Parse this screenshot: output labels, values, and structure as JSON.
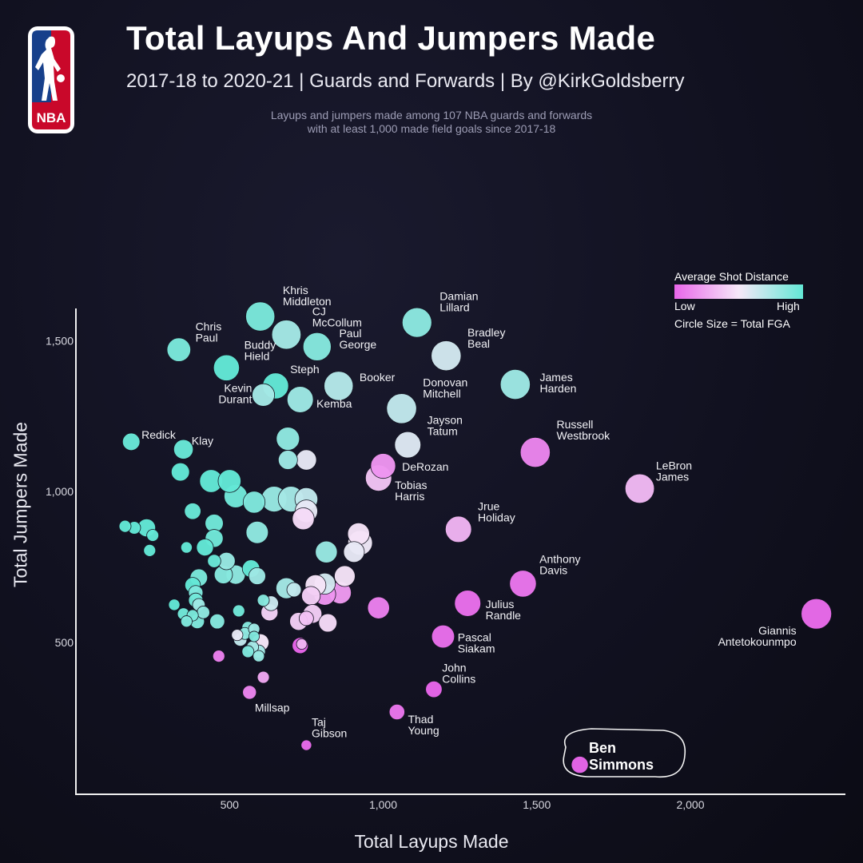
{
  "title": "Total Layups And Jumpers Made",
  "subtitle": "2017-18 to 2020-21 | Guards and Forwards | By @KirkGoldsberry",
  "description": [
    "Layups and jumpers made among 107 NBA guards and forwards",
    "with at least 1,000 made field goals since 2017-18"
  ],
  "logo_text": "NBA",
  "legend": {
    "title": "Average Shot Distance",
    "low": "Low",
    "high": "High",
    "size_note": "Circle Size = Total FGA"
  },
  "colors": {
    "low": "#e866ea",
    "mid": "#f6e8f8",
    "high": "#63e8d6",
    "axis": "#f0f0f0",
    "bg": "#111120"
  },
  "chart_data": {
    "type": "scatter",
    "xlabel": "Total Layups Made",
    "ylabel": "Total Jumpers Made",
    "xlim": [
      0,
      2500
    ],
    "ylim": [
      0,
      1600
    ],
    "xticks": [
      {
        "value": 500,
        "label": "500"
      },
      {
        "value": 1000,
        "label": "1,000"
      },
      {
        "value": 1500,
        "label": "1,500"
      },
      {
        "value": 2000,
        "label": "2,000"
      }
    ],
    "yticks": [
      {
        "value": 500,
        "label": "500"
      },
      {
        "value": 1000,
        "label": "1,000"
      },
      {
        "value": 1500,
        "label": "1,500"
      }
    ],
    "grid": false,
    "color_meaning": "average shot distance (0 = low, 1 = high)",
    "size_meaning": "total FGA",
    "labeled_points": [
      {
        "name": [
          "Khris",
          "Middleton"
        ],
        "x": 600,
        "y": 1580,
        "fga": 5300,
        "dist": 0.92
      },
      {
        "name": [
          "CJ",
          "McCollum"
        ],
        "x": 685,
        "y": 1520,
        "fga": 5400,
        "dist": 0.78
      },
      {
        "name": [
          "Paul",
          "George"
        ],
        "x": 785,
        "y": 1480,
        "fga": 5000,
        "dist": 0.88
      },
      {
        "name": [
          "Chris",
          "Paul"
        ],
        "x": 335,
        "y": 1470,
        "fga": 3500,
        "dist": 0.92
      },
      {
        "name": [
          "Buddy",
          "Hield"
        ],
        "x": 490,
        "y": 1410,
        "fga": 4200,
        "dist": 1.0
      },
      {
        "name": [
          "Damian",
          "Lillard"
        ],
        "x": 1110,
        "y": 1560,
        "fga": 5500,
        "dist": 0.86
      },
      {
        "name": [
          "Bradley",
          "Beal"
        ],
        "x": 1205,
        "y": 1450,
        "fga": 5600,
        "dist": 0.62
      },
      {
        "name": [
          "Steph"
        ],
        "x": 650,
        "y": 1350,
        "fga": 4200,
        "dist": 1.0
      },
      {
        "name": [
          "Booker"
        ],
        "x": 855,
        "y": 1350,
        "fga": 5300,
        "dist": 0.72
      },
      {
        "name": [
          "Kevin",
          "Durant"
        ],
        "x": 610,
        "y": 1320,
        "fga": 3200,
        "dist": 0.78
      },
      {
        "name": [
          "Kemba"
        ],
        "x": 730,
        "y": 1305,
        "fga": 4300,
        "dist": 0.8
      },
      {
        "name": [
          "James",
          "Harden"
        ],
        "x": 1430,
        "y": 1355,
        "fga": 5600,
        "dist": 0.8
      },
      {
        "name": [
          "Donovan",
          "Mitchell"
        ],
        "x": 1060,
        "y": 1275,
        "fga": 5600,
        "dist": 0.68
      },
      {
        "name": [
          "Jayson",
          "Tatum"
        ],
        "x": 1080,
        "y": 1155,
        "fga": 4300,
        "dist": 0.58
      },
      {
        "name": [
          "Redick"
        ],
        "x": 180,
        "y": 1165,
        "fga": 1900,
        "dist": 0.98
      },
      {
        "name": [
          "Klay"
        ],
        "x": 350,
        "y": 1140,
        "fga": 2400,
        "dist": 0.98
      },
      {
        "name": [
          "Russell",
          "Westbrook"
        ],
        "x": 1495,
        "y": 1130,
        "fga": 5600,
        "dist": 0.12
      },
      {
        "name": [
          "DeRozan"
        ],
        "x": 1000,
        "y": 1085,
        "fga": 3900,
        "dist": 0.18
      },
      {
        "name": [
          "Tobias",
          "Harris"
        ],
        "x": 985,
        "y": 1045,
        "fga": 4300,
        "dist": 0.36
      },
      {
        "name": [
          "LeBron",
          "James"
        ],
        "x": 1835,
        "y": 1010,
        "fga": 5400,
        "dist": 0.32
      },
      {
        "name": [
          "Jrue",
          "Holiday"
        ],
        "x": 1245,
        "y": 875,
        "fga": 4300,
        "dist": 0.3
      },
      {
        "name": [
          "Anthony",
          "Davis"
        ],
        "x": 1455,
        "y": 695,
        "fga": 4500,
        "dist": 0.06
      },
      {
        "name": [
          "Julius",
          "Randle"
        ],
        "x": 1275,
        "y": 630,
        "fga": 4300,
        "dist": 0.04
      },
      {
        "name": [
          "Giannis",
          "Antetokounmpo"
        ],
        "x": 2410,
        "y": 595,
        "fga": 5800,
        "dist": 0.02
      },
      {
        "name": [
          "Pascal",
          "Siakam"
        ],
        "x": 1195,
        "y": 520,
        "fga": 3300,
        "dist": 0.04
      },
      {
        "name": [
          "John",
          "Collins"
        ],
        "x": 1165,
        "y": 345,
        "fga": 1700,
        "dist": 0.0
      },
      {
        "name": [
          "Millsap"
        ],
        "x": 565,
        "y": 335,
        "fga": 1200,
        "dist": 0.12
      },
      {
        "name": [
          "Thad",
          "Young"
        ],
        "x": 1045,
        "y": 270,
        "fga": 1500,
        "dist": 0.06
      },
      {
        "name": [
          "Taj",
          "Gibson"
        ],
        "x": 750,
        "y": 160,
        "fga": 700,
        "dist": 0.02
      },
      {
        "name": [
          "Ben",
          "Simmons"
        ],
        "x": 1640,
        "y": 95,
        "fga": 1800,
        "dist": 0.0,
        "highlight": true
      }
    ],
    "unlabeled_points": [
      {
        "x": 690,
        "y": 1175,
        "fga": 3400,
        "dist": 0.85
      },
      {
        "x": 690,
        "y": 1105,
        "fga": 2300,
        "dist": 0.8
      },
      {
        "x": 750,
        "y": 1105,
        "fga": 2600,
        "dist": 0.55
      },
      {
        "x": 340,
        "y": 1065,
        "fga": 2100,
        "dist": 1.0
      },
      {
        "x": 440,
        "y": 1035,
        "fga": 3300,
        "dist": 1.0
      },
      {
        "x": 500,
        "y": 1035,
        "fga": 3300,
        "dist": 1.0
      },
      {
        "x": 520,
        "y": 985,
        "fga": 3400,
        "dist": 0.95
      },
      {
        "x": 580,
        "y": 965,
        "fga": 3000,
        "dist": 0.9
      },
      {
        "x": 645,
        "y": 975,
        "fga": 4100,
        "dist": 0.82
      },
      {
        "x": 700,
        "y": 975,
        "fga": 4100,
        "dist": 0.78
      },
      {
        "x": 750,
        "y": 975,
        "fga": 3300,
        "dist": 0.68
      },
      {
        "x": 750,
        "y": 935,
        "fga": 3200,
        "dist": 0.55
      },
      {
        "x": 740,
        "y": 910,
        "fga": 3000,
        "dist": 0.45
      },
      {
        "x": 380,
        "y": 935,
        "fga": 1700,
        "dist": 0.98
      },
      {
        "x": 450,
        "y": 895,
        "fga": 2100,
        "dist": 0.95
      },
      {
        "x": 160,
        "y": 885,
        "fga": 900,
        "dist": 1.0
      },
      {
        "x": 190,
        "y": 880,
        "fga": 1000,
        "dist": 1.0
      },
      {
        "x": 230,
        "y": 880,
        "fga": 2000,
        "dist": 1.0
      },
      {
        "x": 250,
        "y": 855,
        "fga": 900,
        "dist": 1.0
      },
      {
        "x": 450,
        "y": 845,
        "fga": 2000,
        "dist": 0.95
      },
      {
        "x": 360,
        "y": 815,
        "fga": 800,
        "dist": 1.0
      },
      {
        "x": 420,
        "y": 815,
        "fga": 1800,
        "dist": 1.0
      },
      {
        "x": 240,
        "y": 805,
        "fga": 900,
        "dist": 1.0
      },
      {
        "x": 590,
        "y": 865,
        "fga": 3100,
        "dist": 0.85
      },
      {
        "x": 815,
        "y": 800,
        "fga": 3000,
        "dist": 0.82
      },
      {
        "x": 490,
        "y": 770,
        "fga": 1900,
        "dist": 0.82
      },
      {
        "x": 450,
        "y": 770,
        "fga": 1100,
        "dist": 0.98
      },
      {
        "x": 570,
        "y": 745,
        "fga": 1900,
        "dist": 1.0
      },
      {
        "x": 480,
        "y": 725,
        "fga": 2100,
        "dist": 0.88
      },
      {
        "x": 520,
        "y": 725,
        "fga": 2300,
        "dist": 0.85
      },
      {
        "x": 590,
        "y": 720,
        "fga": 1800,
        "dist": 0.8
      },
      {
        "x": 400,
        "y": 715,
        "fga": 1900,
        "dist": 0.92
      },
      {
        "x": 380,
        "y": 690,
        "fga": 1500,
        "dist": 1.0
      },
      {
        "x": 920,
        "y": 860,
        "fga": 3000,
        "dist": 0.48
      },
      {
        "x": 925,
        "y": 830,
        "fga": 3800,
        "dist": 0.52
      },
      {
        "x": 905,
        "y": 800,
        "fga": 2700,
        "dist": 0.55
      },
      {
        "x": 875,
        "y": 720,
        "fga": 2700,
        "dist": 0.48
      },
      {
        "x": 685,
        "y": 680,
        "fga": 2700,
        "dist": 0.78
      },
      {
        "x": 710,
        "y": 675,
        "fga": 1300,
        "dist": 0.68
      },
      {
        "x": 780,
        "y": 690,
        "fga": 2700,
        "dist": 0.48
      },
      {
        "x": 810,
        "y": 695,
        "fga": 2800,
        "dist": 0.62
      },
      {
        "x": 765,
        "y": 655,
        "fga": 2200,
        "dist": 0.4
      },
      {
        "x": 810,
        "y": 660,
        "fga": 3000,
        "dist": 0.18
      },
      {
        "x": 860,
        "y": 665,
        "fga": 3100,
        "dist": 0.2
      },
      {
        "x": 985,
        "y": 615,
        "fga": 3000,
        "dist": 0.1
      },
      {
        "x": 390,
        "y": 665,
        "fga": 1300,
        "dist": 0.9
      },
      {
        "x": 390,
        "y": 640,
        "fga": 1300,
        "dist": 0.95
      },
      {
        "x": 400,
        "y": 625,
        "fga": 1000,
        "dist": 0.8
      },
      {
        "x": 320,
        "y": 625,
        "fga": 800,
        "dist": 1.0
      },
      {
        "x": 350,
        "y": 595,
        "fga": 900,
        "dist": 0.95
      },
      {
        "x": 415,
        "y": 600,
        "fga": 1000,
        "dist": 0.85
      },
      {
        "x": 380,
        "y": 590,
        "fga": 800,
        "dist": 0.92
      },
      {
        "x": 530,
        "y": 605,
        "fga": 900,
        "dist": 0.95
      },
      {
        "x": 610,
        "y": 640,
        "fga": 900,
        "dist": 0.88
      },
      {
        "x": 635,
        "y": 630,
        "fga": 1400,
        "dist": 0.65
      },
      {
        "x": 630,
        "y": 600,
        "fga": 1800,
        "dist": 0.42
      },
      {
        "x": 770,
        "y": 595,
        "fga": 2200,
        "dist": 0.4
      },
      {
        "x": 750,
        "y": 580,
        "fga": 1300,
        "dist": 0.35
      },
      {
        "x": 725,
        "y": 570,
        "fga": 2000,
        "dist": 0.4
      },
      {
        "x": 820,
        "y": 565,
        "fga": 2100,
        "dist": 0.45
      },
      {
        "x": 360,
        "y": 570,
        "fga": 800,
        "dist": 0.9
      },
      {
        "x": 395,
        "y": 570,
        "fga": 1300,
        "dist": 0.9
      },
      {
        "x": 460,
        "y": 570,
        "fga": 1400,
        "dist": 0.88
      },
      {
        "x": 560,
        "y": 550,
        "fga": 900,
        "dist": 0.88
      },
      {
        "x": 580,
        "y": 545,
        "fga": 800,
        "dist": 0.8
      },
      {
        "x": 550,
        "y": 530,
        "fga": 900,
        "dist": 0.85
      },
      {
        "x": 525,
        "y": 525,
        "fga": 800,
        "dist": 0.55
      },
      {
        "x": 580,
        "y": 520,
        "fga": 700,
        "dist": 0.9
      },
      {
        "x": 535,
        "y": 510,
        "fga": 1100,
        "dist": 0.68
      },
      {
        "x": 600,
        "y": 500,
        "fga": 1900,
        "dist": 0.5
      },
      {
        "x": 730,
        "y": 490,
        "fga": 1600,
        "dist": 0.0
      },
      {
        "x": 735,
        "y": 495,
        "fga": 700,
        "dist": 0.3
      },
      {
        "x": 575,
        "y": 485,
        "fga": 900,
        "dist": 0.78
      },
      {
        "x": 560,
        "y": 470,
        "fga": 900,
        "dist": 0.9
      },
      {
        "x": 595,
        "y": 470,
        "fga": 1100,
        "dist": 0.78
      },
      {
        "x": 595,
        "y": 455,
        "fga": 800,
        "dist": 0.82
      },
      {
        "x": 465,
        "y": 455,
        "fga": 900,
        "dist": 0.1
      },
      {
        "x": 610,
        "y": 385,
        "fga": 900,
        "dist": 0.25
      }
    ]
  }
}
